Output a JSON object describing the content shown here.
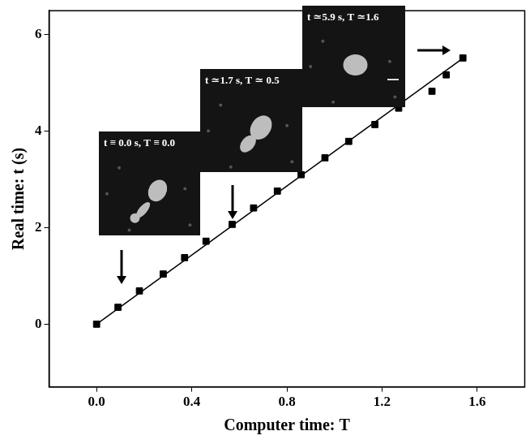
{
  "chart_data": {
    "type": "scatter",
    "x_label": "Computer time: T",
    "y_label": "Real time: t (s)",
    "xlim": [
      -0.2,
      1.8
    ],
    "xticks": [
      {
        "value": 0,
        "label": "0.0"
      },
      0.4,
      0.8,
      1.2,
      1.6
    ],
    "ylim": [
      -1.3,
      6.5
    ],
    "yticks": [
      0,
      2,
      4,
      6
    ],
    "grid": false,
    "series": [
      {
        "type": "scatter",
        "marker": "square",
        "color": "#000000",
        "x": [
          0,
          0.09,
          0.18,
          0.28,
          0.37,
          0.46,
          0.57,
          0.66,
          0.76,
          0.86,
          0.96,
          1.06,
          1.17,
          1.27,
          1.41,
          1.47,
          1.54
        ],
        "values": [
          0,
          0.35,
          0.69,
          1.04,
          1.38,
          1.72,
          2.07,
          2.41,
          2.76,
          3.1,
          3.45,
          3.79,
          4.14,
          4.48,
          4.83,
          5.17,
          5.52
        ]
      },
      {
        "type": "line",
        "line_style": "solid",
        "color": "#000000",
        "x": [
          0,
          1.55
        ],
        "values": [
          0,
          5.55
        ]
      }
    ],
    "annotations": [
      "t ≡ 0.0 s, T ≡ 0.0",
      "t ≃1.7 s, T ≃ 0.5",
      "t ≃5.9 s, T ≃1.6"
    ]
  }
}
